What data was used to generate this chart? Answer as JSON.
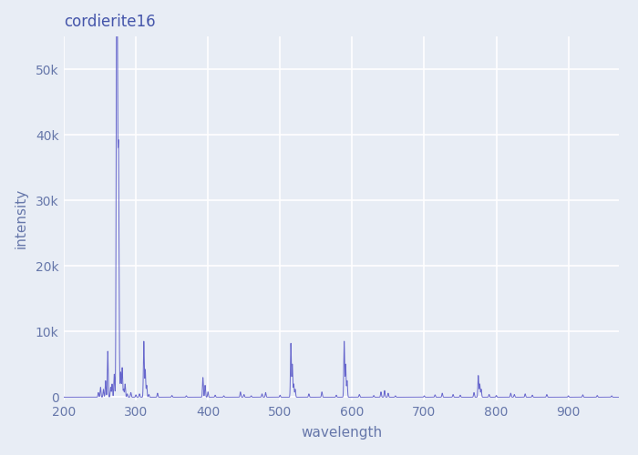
{
  "title": "cordierite16",
  "xlabel": "wavelength",
  "ylabel": "intensity",
  "xlim": [
    200,
    970
  ],
  "ylim": [
    -500,
    55000
  ],
  "line_color": "#6666cc",
  "bg_color": "#e8edf5",
  "fig_bg": "#e8edf5",
  "title_color": "#4455aa",
  "label_color": "#6677aa",
  "tick_color": "#6677aa",
  "grid_color": "#ffffff",
  "peaks": [
    {
      "wl": 248,
      "intensity": 700
    },
    {
      "wl": 251,
      "intensity": 1500
    },
    {
      "wl": 255,
      "intensity": 1200
    },
    {
      "wl": 258,
      "intensity": 2500
    },
    {
      "wl": 261,
      "intensity": 7000
    },
    {
      "wl": 265,
      "intensity": 1500
    },
    {
      "wl": 267,
      "intensity": 2000
    },
    {
      "wl": 270,
      "intensity": 3500
    },
    {
      "wl": 273,
      "intensity": 43000
    },
    {
      "wl": 274,
      "intensity": 52000
    },
    {
      "wl": 275,
      "intensity": 19000
    },
    {
      "wl": 276,
      "intensity": 32000
    },
    {
      "wl": 277,
      "intensity": 4200
    },
    {
      "wl": 279,
      "intensity": 3800
    },
    {
      "wl": 281,
      "intensity": 4500
    },
    {
      "wl": 283,
      "intensity": 1200
    },
    {
      "wl": 285,
      "intensity": 2000
    },
    {
      "wl": 288,
      "intensity": 500
    },
    {
      "wl": 293,
      "intensity": 700
    },
    {
      "wl": 300,
      "intensity": 350
    },
    {
      "wl": 305,
      "intensity": 500
    },
    {
      "wl": 311,
      "intensity": 8500
    },
    {
      "wl": 313,
      "intensity": 4200
    },
    {
      "wl": 315,
      "intensity": 1800
    },
    {
      "wl": 318,
      "intensity": 400
    },
    {
      "wl": 330,
      "intensity": 600
    },
    {
      "wl": 350,
      "intensity": 250
    },
    {
      "wl": 370,
      "intensity": 200
    },
    {
      "wl": 393,
      "intensity": 3000
    },
    {
      "wl": 396,
      "intensity": 1800
    },
    {
      "wl": 400,
      "intensity": 800
    },
    {
      "wl": 410,
      "intensity": 300
    },
    {
      "wl": 422,
      "intensity": 200
    },
    {
      "wl": 445,
      "intensity": 800
    },
    {
      "wl": 450,
      "intensity": 400
    },
    {
      "wl": 460,
      "intensity": 200
    },
    {
      "wl": 475,
      "intensity": 500
    },
    {
      "wl": 480,
      "intensity": 700
    },
    {
      "wl": 500,
      "intensity": 300
    },
    {
      "wl": 515,
      "intensity": 8200
    },
    {
      "wl": 517,
      "intensity": 5000
    },
    {
      "wl": 519,
      "intensity": 2000
    },
    {
      "wl": 521,
      "intensity": 1200
    },
    {
      "wl": 540,
      "intensity": 500
    },
    {
      "wl": 558,
      "intensity": 800
    },
    {
      "wl": 578,
      "intensity": 300
    },
    {
      "wl": 589,
      "intensity": 8500
    },
    {
      "wl": 591,
      "intensity": 5000
    },
    {
      "wl": 593,
      "intensity": 2500
    },
    {
      "wl": 610,
      "intensity": 400
    },
    {
      "wl": 630,
      "intensity": 250
    },
    {
      "wl": 640,
      "intensity": 800
    },
    {
      "wl": 645,
      "intensity": 1000
    },
    {
      "wl": 650,
      "intensity": 600
    },
    {
      "wl": 660,
      "intensity": 200
    },
    {
      "wl": 700,
      "intensity": 200
    },
    {
      "wl": 715,
      "intensity": 350
    },
    {
      "wl": 725,
      "intensity": 600
    },
    {
      "wl": 740,
      "intensity": 400
    },
    {
      "wl": 750,
      "intensity": 300
    },
    {
      "wl": 769,
      "intensity": 700
    },
    {
      "wl": 775,
      "intensity": 3300
    },
    {
      "wl": 777,
      "intensity": 2000
    },
    {
      "wl": 779,
      "intensity": 1200
    },
    {
      "wl": 790,
      "intensity": 400
    },
    {
      "wl": 800,
      "intensity": 250
    },
    {
      "wl": 820,
      "intensity": 600
    },
    {
      "wl": 825,
      "intensity": 400
    },
    {
      "wl": 840,
      "intensity": 500
    },
    {
      "wl": 850,
      "intensity": 300
    },
    {
      "wl": 870,
      "intensity": 400
    },
    {
      "wl": 900,
      "intensity": 200
    },
    {
      "wl": 920,
      "intensity": 350
    },
    {
      "wl": 940,
      "intensity": 250
    },
    {
      "wl": 960,
      "intensity": 200
    }
  ]
}
